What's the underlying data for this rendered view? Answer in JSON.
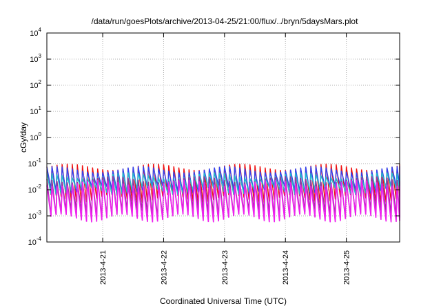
{
  "chart_data": {
    "type": "line",
    "title": "/data/run/goesPlots/archive/2013-04-25/21:00/flux/../bryn/5daysMars.plot",
    "xlabel": "Coordinated Universal Time (UTC)",
    "ylabel": "cGy/day",
    "yscale": "log",
    "ylim": [
      0.0001,
      10000
    ],
    "xlim": [
      "2013-04-20 02:00",
      "2013-04-25 21:00"
    ],
    "yticks": [
      {
        "base": "10",
        "exp": "4"
      },
      {
        "base": "10",
        "exp": "3"
      },
      {
        "base": "10",
        "exp": "2"
      },
      {
        "base": "10",
        "exp": "1"
      },
      {
        "base": "10",
        "exp": "0"
      },
      {
        "base": "10",
        "exp": "-1"
      },
      {
        "base": "10",
        "exp": "-2"
      },
      {
        "base": "10",
        "exp": "-3"
      },
      {
        "base": "10",
        "exp": "-4"
      }
    ],
    "xticks": [
      "2013-4-21",
      "2013-4-22",
      "2013-4-23",
      "2013-4-24",
      "2013-4-25"
    ],
    "grid": true,
    "legend": "none",
    "sawtooth_peaks_per_day": 12,
    "series": [
      {
        "color": "#ee1111",
        "peak": 0.075,
        "trough": 0.0045
      },
      {
        "color": "#3344ee",
        "peak": 0.06,
        "trough": 0.01
      },
      {
        "color": "#22bbcc",
        "peak": 0.035,
        "trough": 0.009
      },
      {
        "color": "#993399",
        "peak": 0.025,
        "trough": 0.0012
      },
      {
        "color": "#ee22ee",
        "peak": 0.018,
        "trough": 0.0008
      }
    ]
  }
}
